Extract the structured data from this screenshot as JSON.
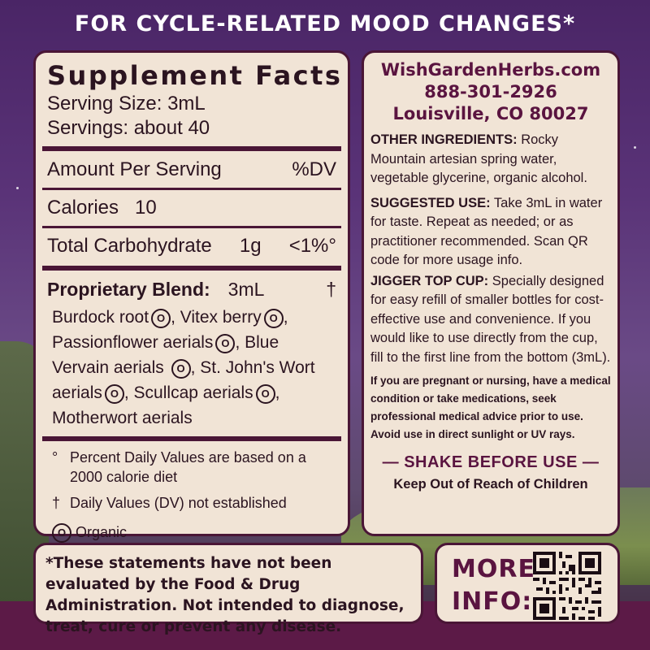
{
  "headline": "FOR CYCLE-RELATED MOOD CHANGES*",
  "facts": {
    "title": "Supplement Facts",
    "serving_size": "Serving Size: 3mL",
    "servings": "Servings: about 40",
    "amount_per_serving": "Amount Per Serving",
    "dv_header": "%DV",
    "calories_label": "Calories",
    "calories_value": "10",
    "carb_label": "Total Carbohydrate",
    "carb_value": "1g",
    "carb_dv": "<1%°",
    "blend_label": "Proprietary Blend:",
    "blend_amount": "3mL",
    "blend_dv": "†",
    "ingredients": [
      "Burdock root",
      "Vitex berry",
      "Passionflower aerials",
      "Blue Vervain aerials",
      "St. John's Wort aerials",
      "Scullcap aerials",
      "Motherwort aerials"
    ],
    "organic_symbol": "O",
    "footnote_percent_symbol": "°",
    "footnote_percent": "Percent Daily Values are based on a 2000 calorie diet",
    "footnote_dagger_symbol": "†",
    "footnote_dagger": "Daily Values (DV) not established",
    "organic_note": "Organic"
  },
  "contact": {
    "website": "WishGardenHerbs.com",
    "phone": "888-301-2926",
    "address": "Louisville, CO 80027"
  },
  "info": {
    "other_ingredients_label": "OTHER INGREDIENTS:",
    "other_ingredients_text": "Rocky Mountain artesian spring water, vegetable glycerine, organic alcohol.",
    "suggested_use_label": "SUGGESTED USE:",
    "suggested_use_text": "Take 3mL in water for taste. Repeat as needed; or as practitioner recommended. Scan QR code for more usage info.",
    "jigger_label": "JIGGER TOP CUP:",
    "jigger_text": "Specially designed for easy refill of smaller bottles for cost-effective use and convenience. If you would like to use directly from the cup, fill to the first line from the bottom (3mL).",
    "warning": "If you are pregnant or nursing, have a medical condition or take medications, seek professional medical advice prior to use. Avoid use in direct sunlight or UV rays.",
    "shake": "— SHAKE BEFORE USE —",
    "keep_out": "Keep Out of Reach of Children"
  },
  "disclaimer": "*These statements have not been evaluated by the Food & Drug Administration. Not intended to diagnose, treat, cure or prevent any disease.",
  "more_info": {
    "line1": "MORE",
    "line2": "INFO:"
  },
  "colors": {
    "panel_bg": "#f1e4d6",
    "panel_border": "#4a1636",
    "accent": "#5a1440"
  }
}
